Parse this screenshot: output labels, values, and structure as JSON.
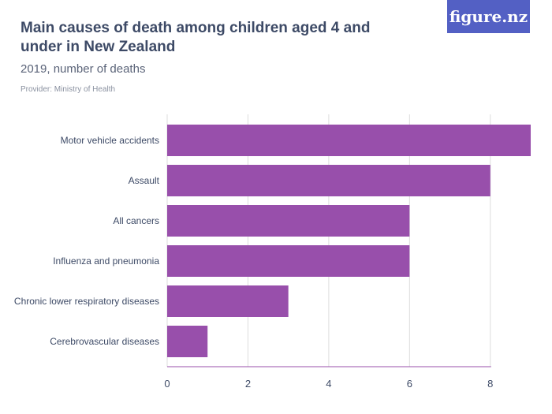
{
  "header": {
    "title": "Main causes of death among children aged 4 and under in New Zealand",
    "subtitle": "2019, number of deaths",
    "provider": "Provider: Ministry of Health",
    "logo": "figure.nz"
  },
  "colors": {
    "bar": "#984fab",
    "text": "#3d4a66",
    "grid": "#dddddd",
    "logo_bg": "#5360c4"
  },
  "chart_data": {
    "type": "bar",
    "orientation": "horizontal",
    "title": "Main causes of death among children aged 4 and under in New Zealand",
    "subtitle": "2019, number of deaths",
    "categories": [
      "Motor vehicle accidents",
      "Assault",
      "All cancers",
      "Influenza and pneumonia",
      "Chronic lower respiratory diseases",
      "Cerebrovascular diseases"
    ],
    "values": [
      9,
      8,
      6,
      6,
      3,
      1
    ],
    "xlim": [
      0,
      9
    ],
    "xticks": [
      0,
      2,
      4,
      6,
      8
    ],
    "grid": true,
    "xlabel": "",
    "ylabel": ""
  }
}
